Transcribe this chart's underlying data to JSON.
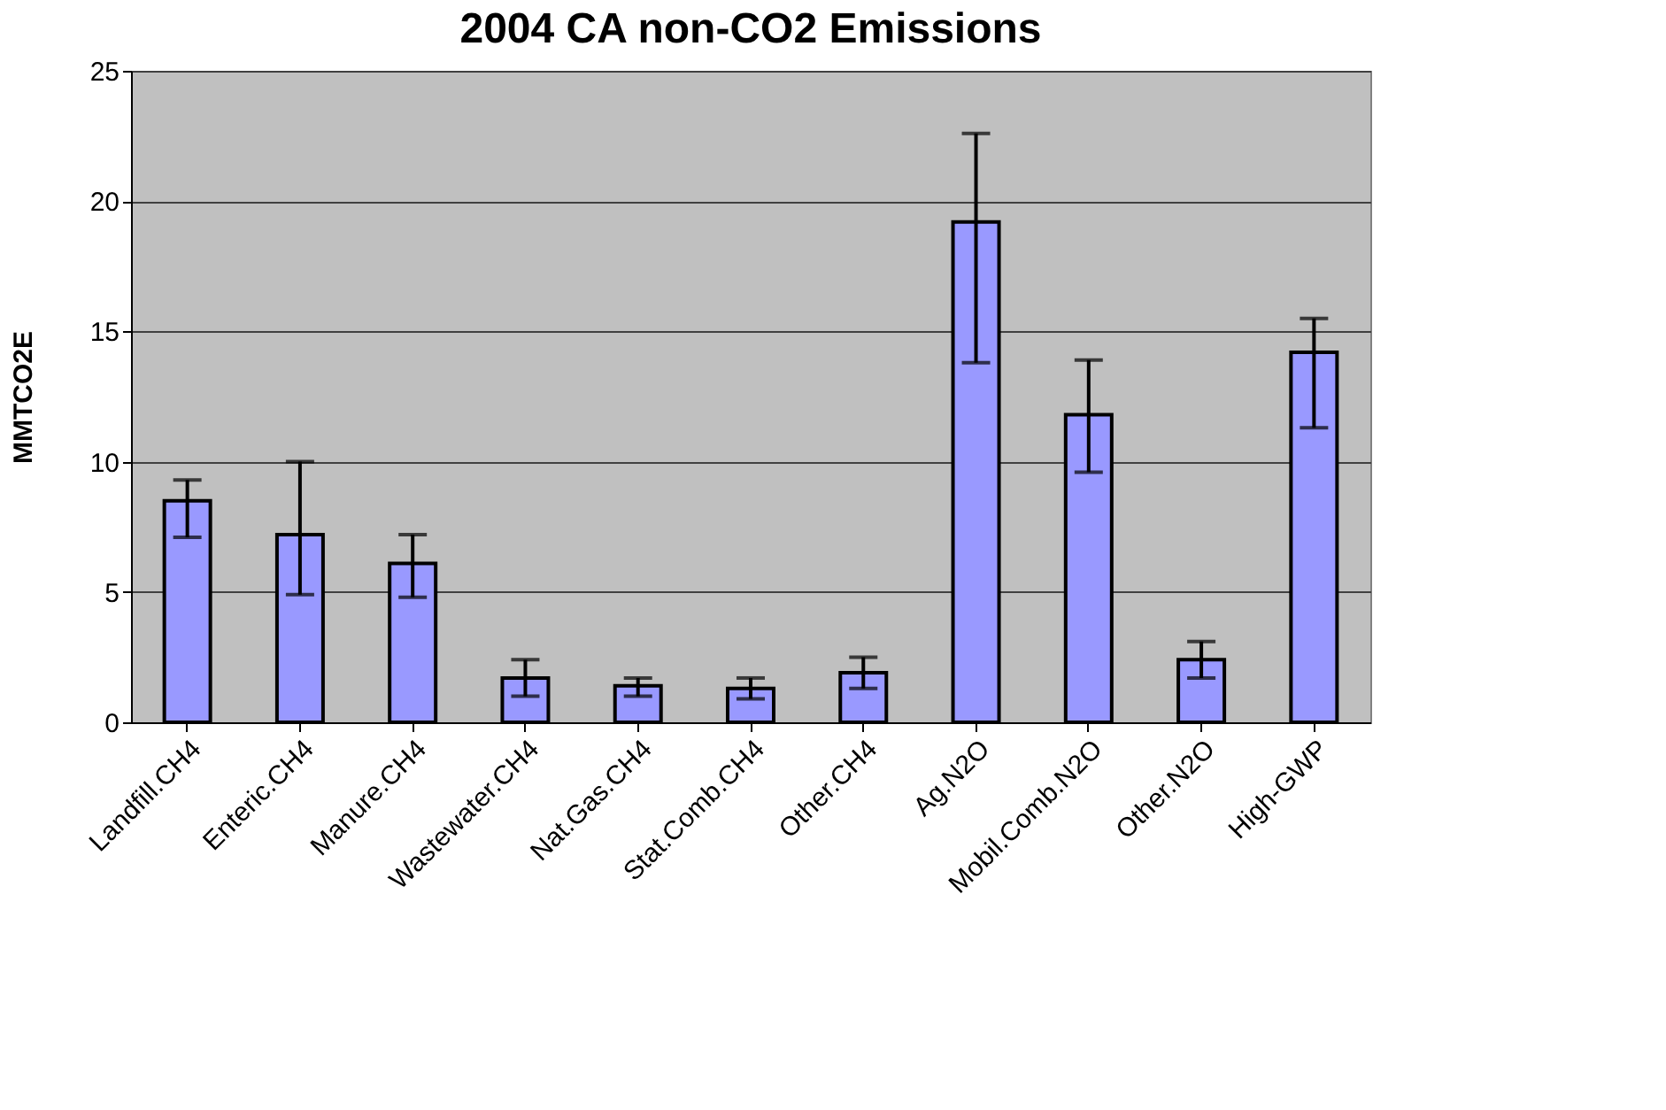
{
  "chart_data": {
    "type": "bar",
    "title": "2004 CA non-CO2 Emissions",
    "ylabel": "MMTCO2E",
    "categories": [
      "Landfill.CH4",
      "Enteric.CH4",
      "Manure.CH4",
      "Wastewater.CH4",
      "Nat.Gas.CH4",
      "Stat.Comb.CH4",
      "Other.CH4",
      "Ag.N2O",
      "Mobil.Comb.N2O",
      "Other.N2O",
      "High-GWP"
    ],
    "values": [
      8.5,
      7.2,
      6.1,
      1.7,
      1.4,
      1.3,
      1.9,
      19.2,
      11.8,
      2.4,
      14.2
    ],
    "errors": [
      [
        7.1,
        9.3
      ],
      [
        4.9,
        10.0
      ],
      [
        4.8,
        7.2
      ],
      [
        1.0,
        2.4
      ],
      [
        1.0,
        1.7
      ],
      [
        0.9,
        1.7
      ],
      [
        1.3,
        2.5
      ],
      [
        13.8,
        22.6
      ],
      [
        9.6,
        13.9
      ],
      [
        1.7,
        3.1
      ],
      [
        11.3,
        15.5
      ]
    ],
    "color": "#9999ff",
    "ylim": [
      0,
      25
    ],
    "yticks": [
      0,
      5,
      10,
      15,
      20,
      25
    ],
    "grid": "y"
  }
}
